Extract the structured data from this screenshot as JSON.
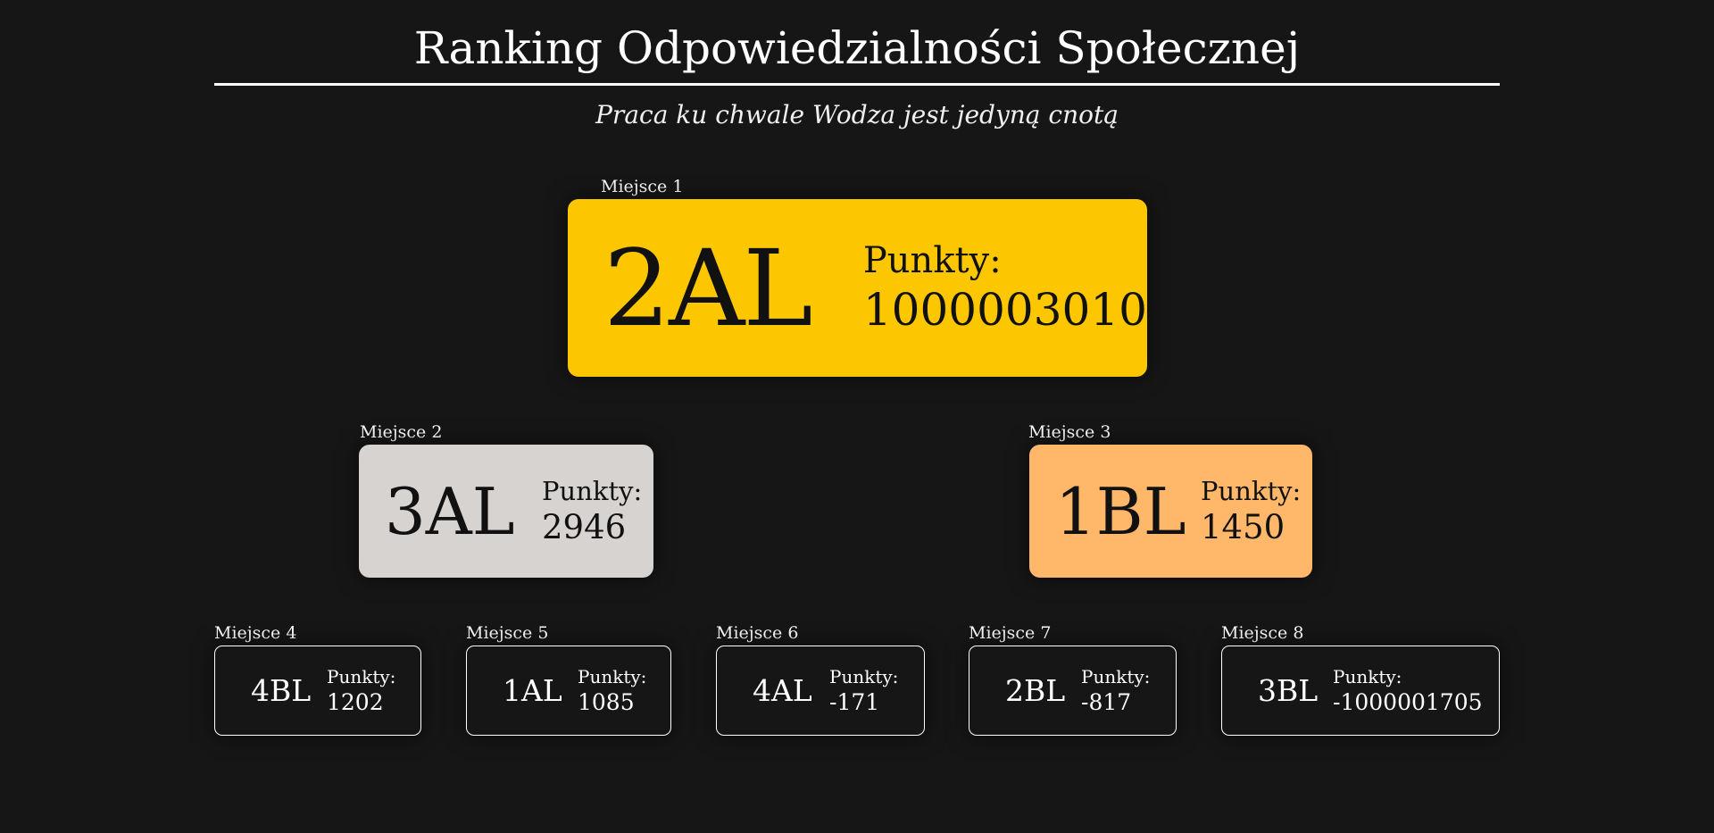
{
  "header": {
    "title": "Ranking Odpowiedzialności Społecznej",
    "subtitle": "Praca ku chwale Wodza jest jedyną cnotą"
  },
  "points_label": "Punkty:",
  "ranking": [
    {
      "place_label": "Miejsce 1",
      "team": "2AL",
      "points": "1000003010",
      "color": "#fdc700"
    },
    {
      "place_label": "Miejsce 2",
      "team": "3AL",
      "points": "2946",
      "color": "#d6d3d1"
    },
    {
      "place_label": "Miejsce 3",
      "team": "1BL",
      "points": "1450",
      "color": "#ffb86a"
    },
    {
      "place_label": "Miejsce 4",
      "team": "4BL",
      "points": "1202"
    },
    {
      "place_label": "Miejsce 5",
      "team": "1AL",
      "points": "1085"
    },
    {
      "place_label": "Miejsce 6",
      "team": "4AL",
      "points": "-171"
    },
    {
      "place_label": "Miejsce 7",
      "team": "2BL",
      "points": "-817"
    },
    {
      "place_label": "Miejsce 8",
      "team": "3BL",
      "points": "-1000001705"
    }
  ],
  "colors": {
    "background": "#161616",
    "gold": "#fdc700",
    "silver": "#d6d3d1",
    "bronze": "#ffb86a"
  }
}
